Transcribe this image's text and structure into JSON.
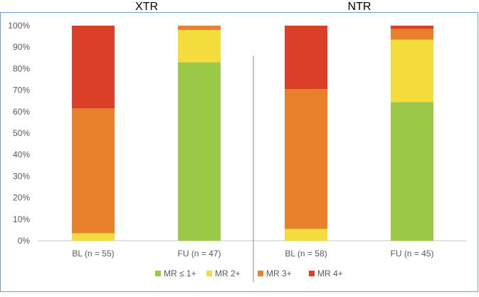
{
  "chart_data": {
    "type": "bar",
    "stacked": true,
    "percent": true,
    "panels": [
      {
        "title": "XTR"
      },
      {
        "title": "NTR"
      }
    ],
    "categories": [
      "BL (n = 55)",
      "FU (n = 47)",
      "BL (n = 58)",
      "FU (n = 45)"
    ],
    "category_panel": [
      0,
      0,
      1,
      1
    ],
    "series": [
      {
        "name": "MR ≤ 1+",
        "color": "#9BC847",
        "values": [
          0,
          83,
          0,
          64.5
        ]
      },
      {
        "name": "MR 2+",
        "color": "#F4DC3C",
        "values": [
          3.5,
          15,
          5.5,
          29
        ]
      },
      {
        "name": "MR 3+",
        "color": "#E9802C",
        "values": [
          58,
          2,
          65,
          5
        ]
      },
      {
        "name": "MR 4+",
        "color": "#DB3F28",
        "values": [
          38.5,
          0,
          29.5,
          1.5
        ]
      }
    ],
    "ylim": [
      0,
      100
    ],
    "y_ticks": [
      "0%",
      "10%",
      "20%",
      "30%",
      "40%",
      "50%",
      "60%",
      "70%",
      "80%",
      "90%",
      "100%"
    ],
    "grid": false,
    "legend_position": "bottom",
    "panel_separator": true,
    "border_color": "#6F9FD0"
  }
}
